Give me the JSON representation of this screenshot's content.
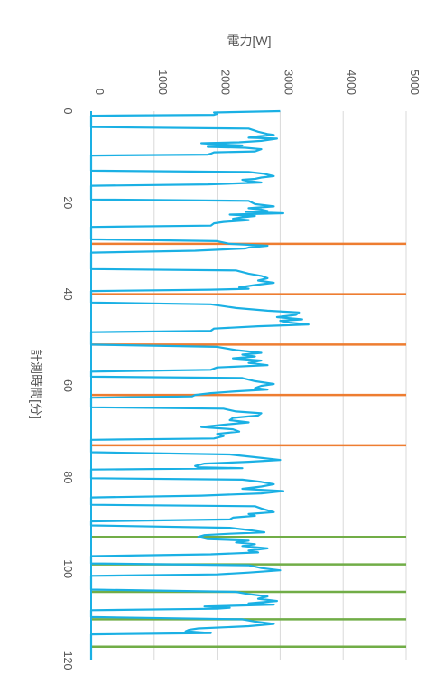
{
  "chart_data": {
    "type": "line",
    "title": "",
    "xlabel": "計測時間[分]",
    "ylabel": "電力[W]",
    "xlim": [
      0,
      120
    ],
    "ylim": [
      0,
      5000
    ],
    "x_ticks": [
      "0",
      "20",
      "40",
      "60",
      "80",
      "100",
      "120"
    ],
    "y_ticks": [
      "0",
      "1000",
      "2000",
      "3000",
      "4000",
      "5000"
    ],
    "grid": "vertical major gridlines at each power tick",
    "orientation": "rotated 90° clockwise: measurement time runs downward, power runs rightward",
    "series": [
      {
        "color": "#1ab0e4",
        "points": [
          [
            0.0,
            3000
          ],
          [
            0.3,
            1950
          ],
          [
            0.6,
            2000
          ],
          [
            0.8,
            1950
          ],
          [
            1.0,
            0
          ],
          [
            3.5,
            0
          ],
          [
            3.8,
            2500
          ],
          [
            4.5,
            2650
          ],
          [
            5.0,
            2800
          ],
          [
            5.2,
            2900
          ],
          [
            5.5,
            2650
          ],
          [
            5.8,
            2500
          ],
          [
            6.0,
            2950
          ],
          [
            6.5,
            2700
          ],
          [
            6.8,
            2350
          ],
          [
            7.0,
            1750
          ],
          [
            7.3,
            2100
          ],
          [
            7.5,
            2400
          ],
          [
            7.8,
            1850
          ],
          [
            8.0,
            2450
          ],
          [
            8.3,
            2700
          ],
          [
            8.8,
            2600
          ],
          [
            9.0,
            1950
          ],
          [
            9.3,
            1900
          ],
          [
            9.5,
            1850
          ],
          [
            9.7,
            0
          ],
          [
            13.0,
            0
          ],
          [
            13.3,
            2500
          ],
          [
            13.7,
            2750
          ],
          [
            14.2,
            2900
          ],
          [
            14.5,
            2700
          ],
          [
            14.8,
            2600
          ],
          [
            15.0,
            2400
          ],
          [
            15.3,
            2500
          ],
          [
            15.6,
            2700
          ],
          [
            16.0,
            1850
          ],
          [
            16.3,
            0
          ],
          [
            19.3,
            0
          ],
          [
            19.6,
            2500
          ],
          [
            20.3,
            2600
          ],
          [
            20.8,
            2900
          ],
          [
            21.2,
            2500
          ],
          [
            21.5,
            2700
          ],
          [
            21.8,
            2800
          ],
          [
            22.0,
            2450
          ],
          [
            22.3,
            3050
          ],
          [
            22.6,
            2200
          ],
          [
            22.9,
            2600
          ],
          [
            23.2,
            2400
          ],
          [
            23.5,
            2250
          ],
          [
            23.8,
            2500
          ],
          [
            24.2,
            2100
          ],
          [
            24.5,
            1950
          ],
          [
            25.0,
            1900
          ],
          [
            25.3,
            0
          ],
          [
            28.0,
            0
          ],
          [
            28.4,
            2000
          ],
          [
            29.0,
            2200
          ],
          [
            29.4,
            2800
          ],
          [
            29.8,
            2500
          ],
          [
            30.0,
            2450
          ],
          [
            30.5,
            1650
          ],
          [
            30.9,
            0
          ],
          [
            34.5,
            0
          ],
          [
            34.8,
            2300
          ],
          [
            35.5,
            2500
          ],
          [
            36.0,
            2700
          ],
          [
            36.5,
            2800
          ],
          [
            37.0,
            2650
          ],
          [
            37.5,
            2900
          ],
          [
            38.0,
            2600
          ],
          [
            38.5,
            2350
          ],
          [
            38.8,
            2500
          ],
          [
            39.0,
            1900
          ],
          [
            39.3,
            0
          ],
          [
            41.8,
            0
          ],
          [
            42.2,
            1900
          ],
          [
            43.0,
            2300
          ],
          [
            43.6,
            2800
          ],
          [
            44.0,
            3300
          ],
          [
            44.5,
            3250
          ],
          [
            45.0,
            2950
          ],
          [
            45.5,
            3350
          ],
          [
            45.8,
            3000
          ],
          [
            46.2,
            3150
          ],
          [
            46.6,
            3450
          ],
          [
            47.0,
            2650
          ],
          [
            47.5,
            1950
          ],
          [
            48.0,
            1900
          ],
          [
            48.3,
            0
          ],
          [
            51.0,
            0
          ],
          [
            51.5,
            2000
          ],
          [
            52.2,
            2300
          ],
          [
            52.8,
            2700
          ],
          [
            53.2,
            2400
          ],
          [
            53.6,
            2600
          ],
          [
            54.0,
            2250
          ],
          [
            54.5,
            2700
          ],
          [
            55.0,
            2500
          ],
          [
            55.5,
            2800
          ],
          [
            56.0,
            2000
          ],
          [
            56.5,
            1900
          ],
          [
            56.9,
            0
          ],
          [
            58.0,
            0
          ],
          [
            58.3,
            2400
          ],
          [
            59.0,
            2600
          ],
          [
            59.6,
            2900
          ],
          [
            60.0,
            2700
          ],
          [
            60.5,
            2600
          ],
          [
            60.8,
            2800
          ],
          [
            61.2,
            2300
          ],
          [
            61.6,
            1900
          ],
          [
            62.0,
            1650
          ],
          [
            62.3,
            1600
          ],
          [
            62.6,
            0
          ],
          [
            64.7,
            0
          ],
          [
            65.0,
            2100
          ],
          [
            65.6,
            2300
          ],
          [
            66.0,
            2700
          ],
          [
            66.5,
            2650
          ],
          [
            67.0,
            2250
          ],
          [
            67.5,
            2200
          ],
          [
            68.0,
            2500
          ],
          [
            68.5,
            2100
          ],
          [
            69.0,
            1750
          ],
          [
            69.5,
            2250
          ],
          [
            70.0,
            2350
          ],
          [
            70.5,
            2000
          ],
          [
            71.0,
            2100
          ],
          [
            71.5,
            1950
          ],
          [
            71.8,
            0
          ],
          [
            74.5,
            0
          ],
          [
            75.0,
            2200
          ],
          [
            75.6,
            2600
          ],
          [
            76.2,
            3000
          ],
          [
            76.6,
            2500
          ],
          [
            77.0,
            1800
          ],
          [
            77.5,
            1650
          ],
          [
            77.8,
            1700
          ],
          [
            78.0,
            2400
          ],
          [
            78.3,
            0
          ],
          [
            80.2,
            0
          ],
          [
            80.5,
            2400
          ],
          [
            81.0,
            2700
          ],
          [
            81.5,
            2900
          ],
          [
            82.0,
            2700
          ],
          [
            82.5,
            2400
          ],
          [
            83.0,
            3050
          ],
          [
            83.5,
            2700
          ],
          [
            84.0,
            1750
          ],
          [
            84.4,
            0
          ],
          [
            86.0,
            0
          ],
          [
            86.3,
            2600
          ],
          [
            86.8,
            2700
          ],
          [
            87.2,
            2800
          ],
          [
            87.6,
            2900
          ],
          [
            88.0,
            2500
          ],
          [
            88.4,
            2600
          ],
          [
            88.8,
            2250
          ],
          [
            89.2,
            2200
          ],
          [
            89.6,
            0
          ],
          [
            90.5,
            0
          ],
          [
            91.0,
            2200
          ],
          [
            91.5,
            2500
          ],
          [
            92.0,
            2750
          ],
          [
            92.3,
            2200
          ],
          [
            92.6,
            1800
          ],
          [
            93.0,
            1700
          ],
          [
            93.5,
            1850
          ],
          [
            93.8,
            2500
          ],
          [
            94.2,
            2300
          ],
          [
            94.6,
            2600
          ],
          [
            95.0,
            2400
          ],
          [
            95.5,
            2800
          ],
          [
            96.0,
            2500
          ],
          [
            96.4,
            2650
          ],
          [
            96.8,
            1900
          ],
          [
            97.2,
            0
          ],
          [
            98.8,
            0
          ],
          [
            99.2,
            2500
          ],
          [
            99.8,
            2700
          ],
          [
            100.3,
            3000
          ],
          [
            100.8,
            2500
          ],
          [
            101.2,
            2000
          ],
          [
            101.5,
            0
          ],
          [
            104.5,
            0
          ],
          [
            105.0,
            2300
          ],
          [
            105.5,
            2500
          ],
          [
            106.0,
            2800
          ],
          [
            106.5,
            2650
          ],
          [
            107.0,
            2950
          ],
          [
            107.5,
            2500
          ],
          [
            107.8,
            2900
          ],
          [
            108.2,
            1800
          ],
          [
            108.5,
            2200
          ],
          [
            108.7,
            2000
          ],
          [
            109.0,
            0
          ],
          [
            110.5,
            0
          ],
          [
            111.0,
            2400
          ],
          [
            111.5,
            2600
          ],
          [
            112.0,
            2900
          ],
          [
            112.5,
            2500
          ],
          [
            113.0,
            1700
          ],
          [
            113.3,
            1550
          ],
          [
            113.6,
            1500
          ],
          [
            114.0,
            1900
          ],
          [
            114.3,
            0
          ],
          [
            120.0,
            0
          ]
        ]
      }
    ],
    "markers": [
      {
        "color": "#ee7d31",
        "x": [
          29.0,
          40.0,
          51.0,
          62.0,
          73.0
        ]
      },
      {
        "color": "#71ad47",
        "x": [
          93.0,
          99.0,
          105.0,
          111.0,
          117.0
        ]
      }
    ]
  }
}
